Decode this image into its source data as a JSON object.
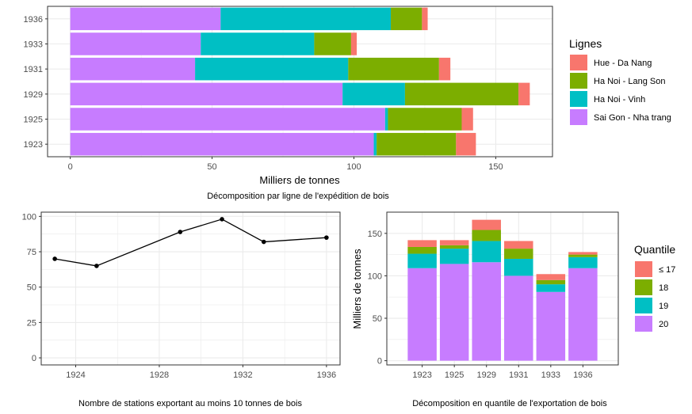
{
  "colors": {
    "hue_da_nang": "#F8766D",
    "ha_noi_lang_son": "#7CAE00",
    "ha_noi_vinh": "#00BFC4",
    "sai_gon_nha_trang": "#C77CFF",
    "grid": "#ebebeb",
    "panel_border": "#333333"
  },
  "chart_data": [
    {
      "type": "bar",
      "orientation": "horizontal",
      "stacked": true,
      "categories": [
        "1923",
        "1925",
        "1929",
        "1931",
        "1933",
        "1936"
      ],
      "series": [
        {
          "name": "Sai Gon - Nha trang",
          "color": "#C77CFF",
          "values": [
            107,
            111,
            96,
            44,
            46,
            53
          ]
        },
        {
          "name": "Ha Noi - Vinh",
          "color": "#00BFC4",
          "values": [
            1,
            1,
            22,
            54,
            40,
            60
          ]
        },
        {
          "name": "Ha Noi - Lang Son",
          "color": "#7CAE00",
          "values": [
            28,
            26,
            40,
            32,
            13,
            11
          ]
        },
        {
          "name": "Hue - Da Nang",
          "color": "#F8766D",
          "values": [
            7,
            4,
            4,
            4,
            2,
            2
          ]
        }
      ],
      "xlabel": "Milliers de tonnes",
      "ylabel": "",
      "xlim": [
        -8,
        170
      ],
      "xticks": [
        0,
        50,
        100,
        150
      ],
      "legend_title": "Lignes",
      "legend_order": [
        "Hue - Da Nang",
        "Ha Noi - Lang Son",
        "Ha Noi - Vinh",
        "Sai Gon - Nha trang"
      ],
      "legend_position": "right",
      "caption": "Décomposition par ligne de l'expédition de bois",
      "grid": true
    },
    {
      "type": "line",
      "x": [
        1923,
        1925,
        1929,
        1931,
        1933,
        1936
      ],
      "y": [
        70,
        65,
        89,
        98,
        82,
        85
      ],
      "xlim": [
        1922.35,
        1936.65
      ],
      "ylim": [
        -5,
        103
      ],
      "xticks": [
        "1924",
        "1928",
        "1932",
        "1936"
      ],
      "yticks": [
        "0",
        "25",
        "50",
        "75",
        "100"
      ],
      "xlabel": "",
      "ylabel": "",
      "caption": "Nombre de stations exportant au moins 10 tonnes de bois",
      "grid": true
    },
    {
      "type": "bar",
      "stacked": true,
      "categories": [
        "1923",
        "1925",
        "1929",
        "1931",
        "1933",
        "1936"
      ],
      "series": [
        {
          "name": "20",
          "color": "#C77CFF",
          "values": [
            109,
            114,
            116,
            100,
            81,
            109
          ]
        },
        {
          "name": "19",
          "color": "#00BFC4",
          "values": [
            17,
            18,
            25,
            20,
            9,
            13
          ]
        },
        {
          "name": "18",
          "color": "#7CAE00",
          "values": [
            8,
            4,
            13,
            12,
            5,
            3
          ]
        },
        {
          "name": "≤ 17",
          "color": "#F8766D",
          "values": [
            8,
            6,
            12,
            9,
            7,
            3
          ]
        }
      ],
      "ylabel": "Milliers de tonnes",
      "xlabel": "",
      "ylim": [
        -5,
        175
      ],
      "yticks": [
        0,
        50,
        100,
        150
      ],
      "legend_title": "Quantile",
      "legend_order": [
        "≤ 17",
        "18",
        "19",
        "20"
      ],
      "legend_position": "right",
      "caption": "Décomposition en quantile de l'exportation de bois",
      "grid": true
    }
  ]
}
